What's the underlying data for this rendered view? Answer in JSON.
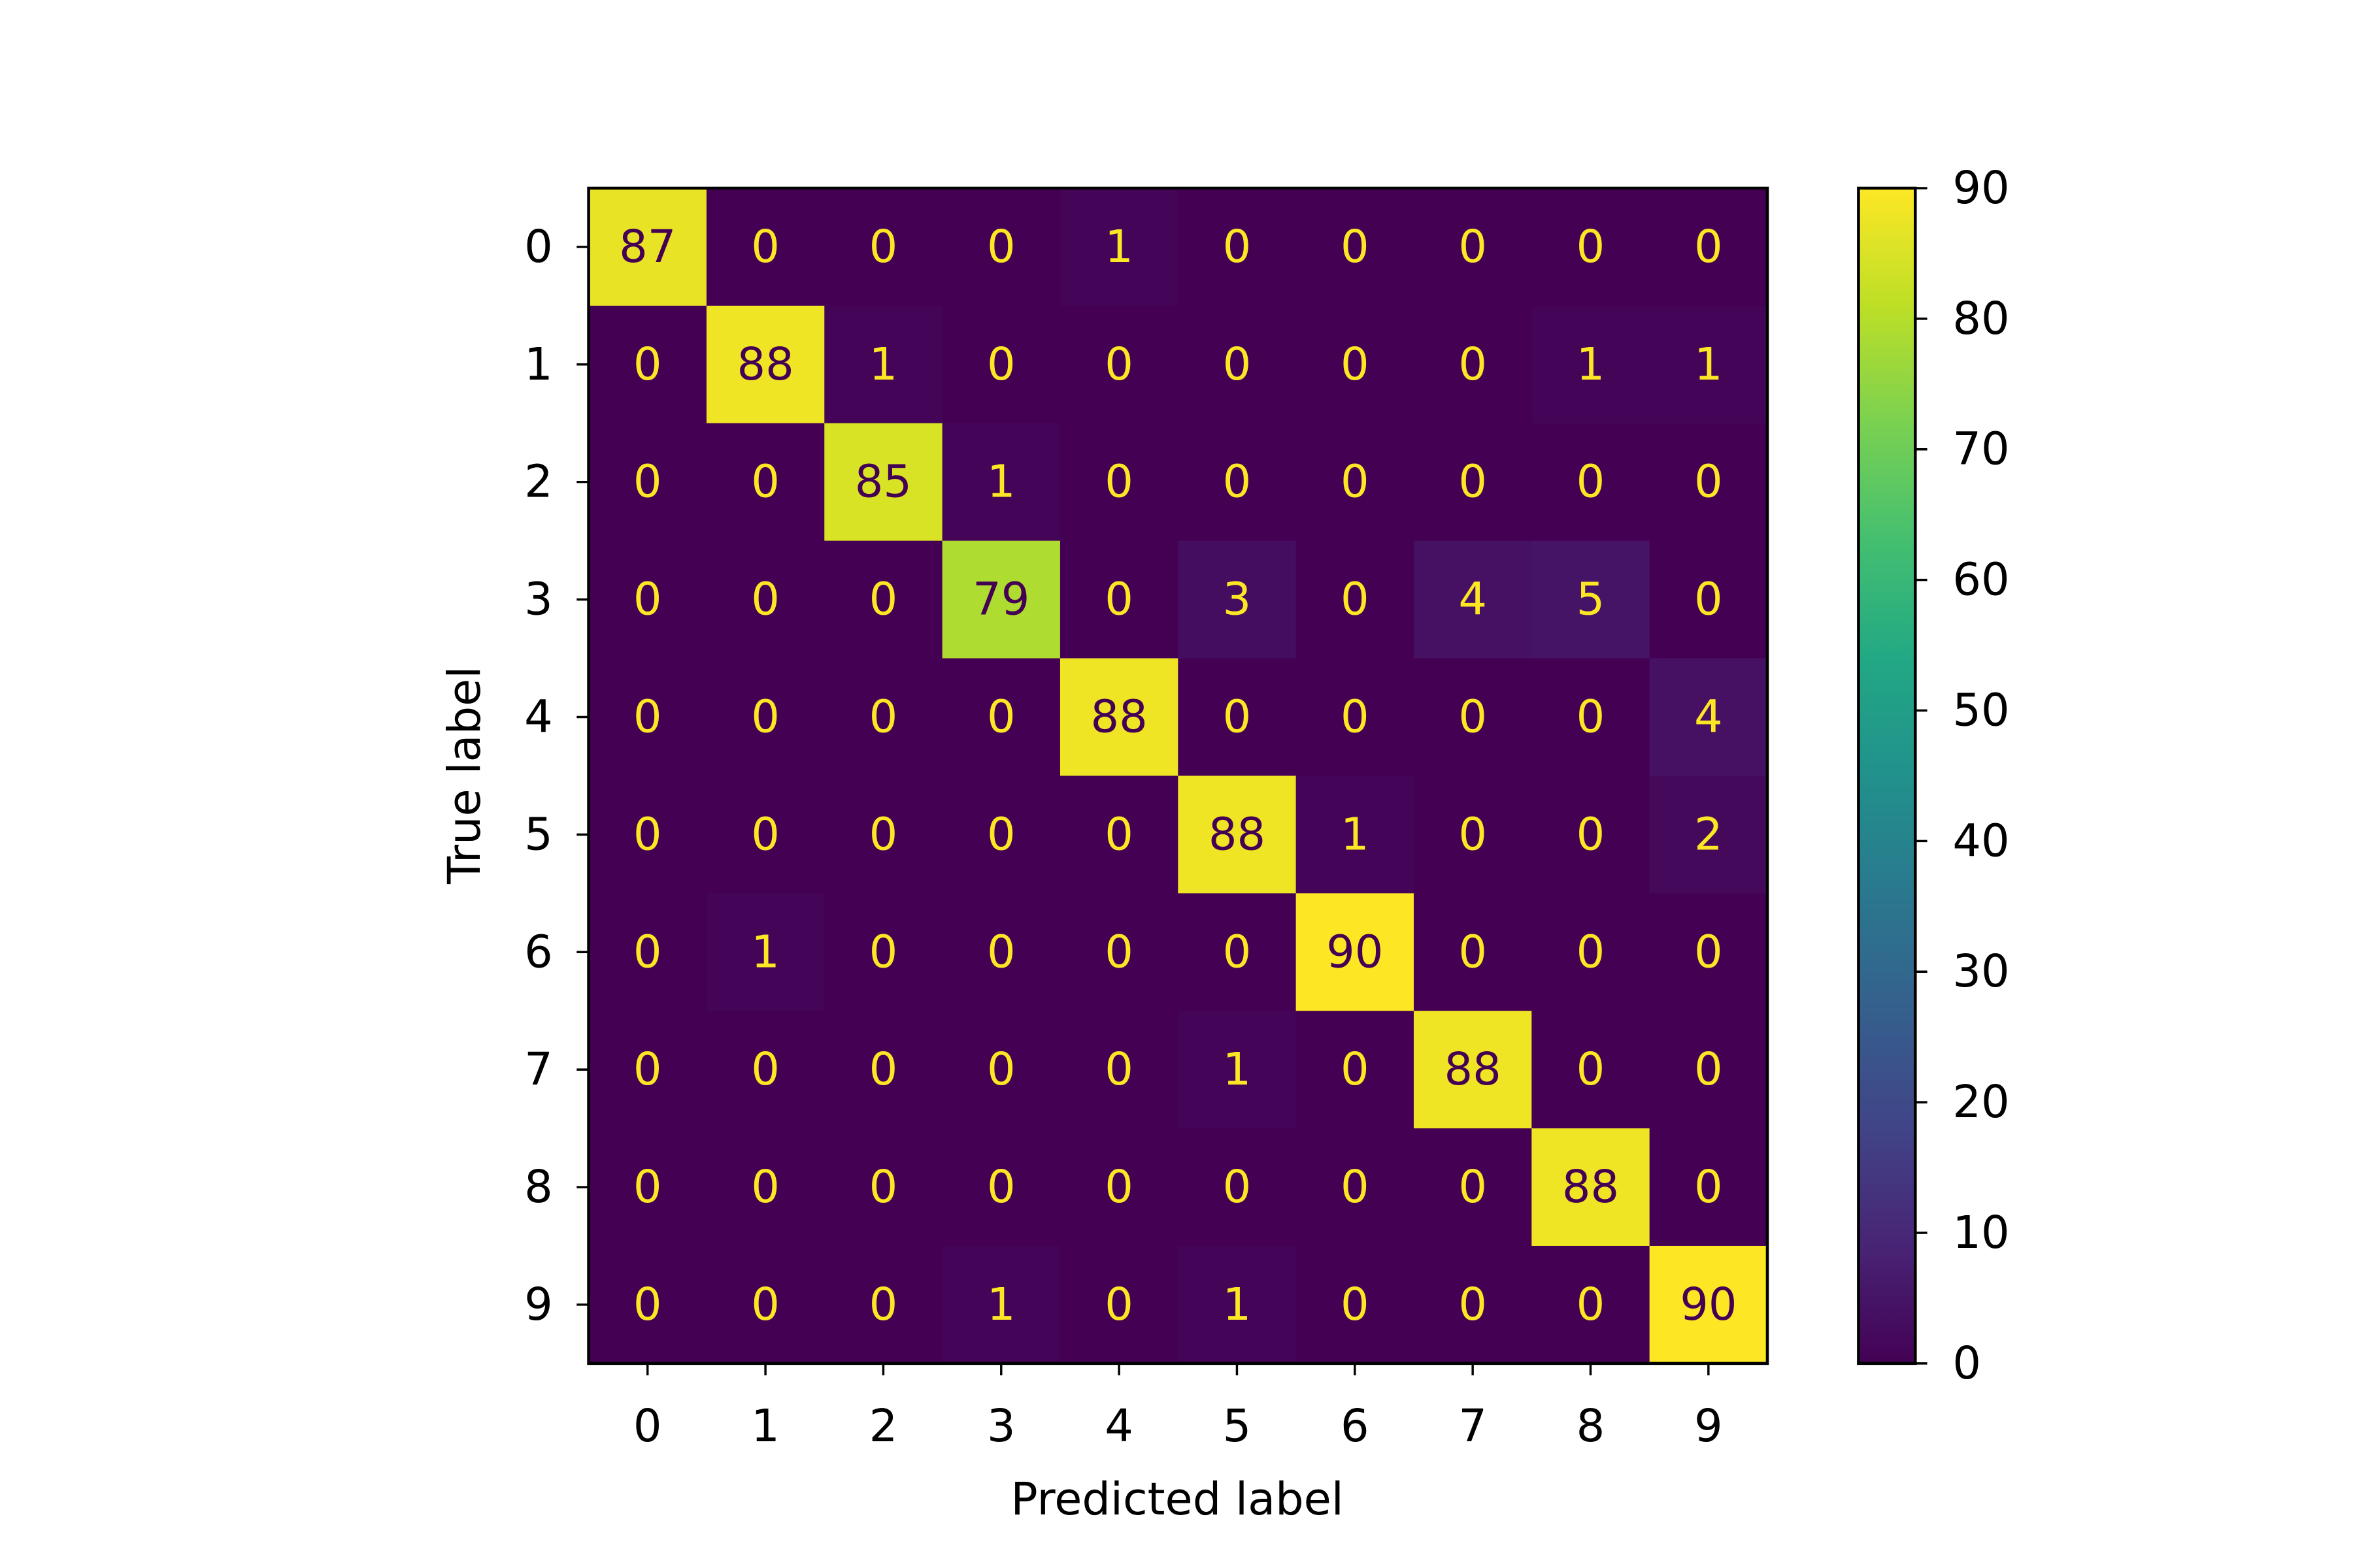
{
  "chart_data": {
    "type": "heatmap",
    "x_label": "Predicted label",
    "y_label": "True label",
    "x_categories": [
      "0",
      "1",
      "2",
      "3",
      "4",
      "5",
      "6",
      "7",
      "8",
      "9"
    ],
    "y_categories": [
      "0",
      "1",
      "2",
      "3",
      "4",
      "5",
      "6",
      "7",
      "8",
      "9"
    ],
    "values": [
      [
        87,
        0,
        0,
        0,
        1,
        0,
        0,
        0,
        0,
        0
      ],
      [
        0,
        88,
        1,
        0,
        0,
        0,
        0,
        0,
        1,
        1
      ],
      [
        0,
        0,
        85,
        1,
        0,
        0,
        0,
        0,
        0,
        0
      ],
      [
        0,
        0,
        0,
        79,
        0,
        3,
        0,
        4,
        5,
        0
      ],
      [
        0,
        0,
        0,
        0,
        88,
        0,
        0,
        0,
        0,
        4
      ],
      [
        0,
        0,
        0,
        0,
        0,
        88,
        1,
        0,
        0,
        2
      ],
      [
        0,
        1,
        0,
        0,
        0,
        0,
        90,
        0,
        0,
        0
      ],
      [
        0,
        0,
        0,
        0,
        0,
        1,
        0,
        88,
        0,
        0
      ],
      [
        0,
        0,
        0,
        0,
        0,
        0,
        0,
        0,
        88,
        0
      ],
      [
        0,
        0,
        0,
        1,
        0,
        1,
        0,
        0,
        0,
        90
      ]
    ],
    "colormap": "viridis",
    "zlim": [
      0,
      90
    ],
    "zticks": [
      0,
      10,
      20,
      30,
      40,
      50,
      60,
      70,
      80,
      90
    ]
  }
}
